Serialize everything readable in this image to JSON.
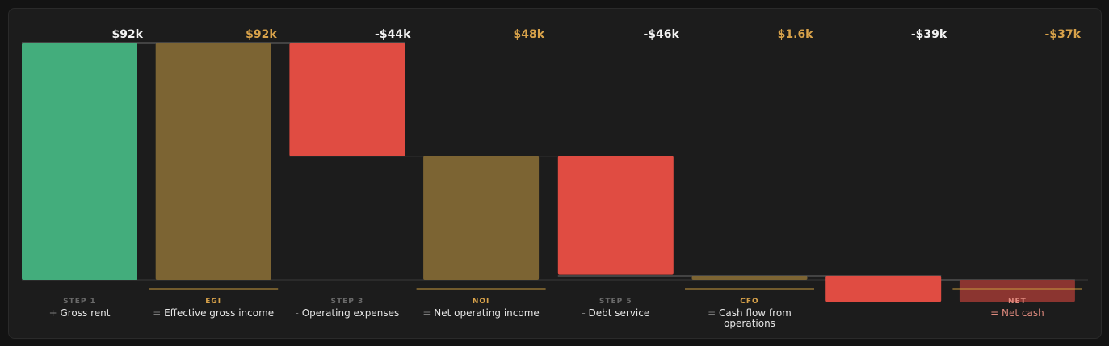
{
  "chart_data": {
    "type": "waterfall",
    "unit": "USD",
    "steps": [
      {
        "step_label": "STEP 1",
        "operator": "+",
        "name": "Gross rent",
        "value": 92000,
        "value_label": "$92k",
        "kind": "increase",
        "milestone": false
      },
      {
        "step_label": "EGI",
        "operator": "=",
        "name": "Effective gross income",
        "value": 92000,
        "value_label": "$92k",
        "kind": "total",
        "milestone": true
      },
      {
        "step_label": "STEP 3",
        "operator": "-",
        "name": "Operating expenses",
        "value": -44000,
        "value_label": "-$44k",
        "kind": "decrease",
        "milestone": false
      },
      {
        "step_label": "NOI",
        "operator": "=",
        "name": "Net operating income",
        "value": 48000,
        "value_label": "$48k",
        "kind": "total",
        "milestone": true
      },
      {
        "step_label": "STEP 5",
        "operator": "-",
        "name": "Debt service",
        "value": -46000,
        "value_label": "-$46k",
        "kind": "decrease",
        "milestone": false
      },
      {
        "step_label": "CFO",
        "operator": "=",
        "name": "Cash flow from operations",
        "value": 1600,
        "value_label": "$1.6k",
        "kind": "total",
        "milestone": true
      },
      {
        "step_label": "",
        "operator": "",
        "name": "",
        "value": -39000,
        "value_label": "-$39k",
        "kind": "decrease",
        "milestone": false
      },
      {
        "step_label": "NET",
        "operator": "=",
        "name": "Net cash",
        "value": -37000,
        "value_label": "-$37k",
        "kind": "total-negative",
        "milestone": true
      }
    ],
    "colors": {
      "increase": "#43ad7c",
      "total": "#7c6433",
      "decrease": "#e04c42",
      "total_negative": "#8b3530",
      "label_light": "#f2f2f2",
      "label_gold": "#d8a24a",
      "step_muted": "#6a6a6a",
      "name_text": "#e6e6e6",
      "operator_text": "#7a7a7a",
      "milestone_line": "#c99a3e",
      "baseline": "#3a3a3a",
      "connector": "#6a6a6a",
      "net_text": "#e08a7e"
    }
  }
}
